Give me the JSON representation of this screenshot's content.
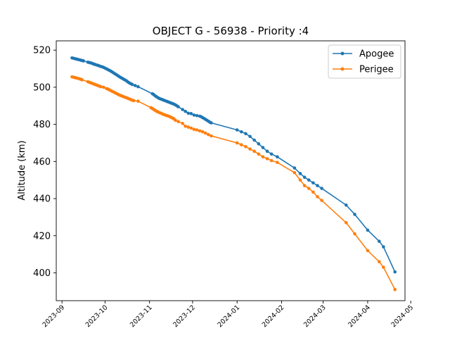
{
  "chart_data": {
    "type": "line",
    "title": "OBJECT G - 56938 - Priority :4",
    "xlabel": "",
    "ylabel": "Altitude (km)",
    "x_type": "date",
    "xlim": [
      "2023-08-28",
      "2024-04-27"
    ],
    "ylim": [
      385,
      525
    ],
    "yticks": [
      400,
      420,
      440,
      460,
      480,
      500,
      520
    ],
    "xticks": [
      "2023-09-01",
      "2023-10-01",
      "2023-11-01",
      "2023-12-01",
      "2024-01-01",
      "2024-02-01",
      "2024-03-01",
      "2024-04-01",
      "2024-05-01"
    ],
    "xtick_labels": [
      "2023-09",
      "2023-10",
      "2023-11",
      "2023-12",
      "2024-01",
      "2024-02",
      "2024-03",
      "2024-04",
      "2024-05"
    ],
    "legend": {
      "placement": "top-right"
    },
    "grid": false,
    "series": [
      {
        "name": "Apogee",
        "color": "#1f77b4",
        "marker": "circle",
        "points": [
          [
            "2023-09-08",
            515.8
          ],
          [
            "2023-09-09",
            515.6
          ],
          [
            "2023-09-10",
            515.4
          ],
          [
            "2023-09-11",
            515.2
          ],
          [
            "2023-09-12",
            515.0
          ],
          [
            "2023-09-13",
            514.8
          ],
          [
            "2023-09-14",
            514.6
          ],
          [
            "2023-09-15",
            514.4
          ],
          [
            "2023-09-16",
            514.2
          ],
          [
            "2023-09-19",
            513.5
          ],
          [
            "2023-09-20",
            513.3
          ],
          [
            "2023-09-21",
            513.1
          ],
          [
            "2023-09-22",
            512.9
          ],
          [
            "2023-09-23",
            512.5
          ],
          [
            "2023-09-24",
            512.3
          ],
          [
            "2023-09-25",
            512.0
          ],
          [
            "2023-09-26",
            511.8
          ],
          [
            "2023-09-27",
            511.5
          ],
          [
            "2023-09-28",
            511.2
          ],
          [
            "2023-09-29",
            511.0
          ],
          [
            "2023-09-30",
            510.7
          ],
          [
            "2023-10-01",
            510.3
          ],
          [
            "2023-10-02",
            509.9
          ],
          [
            "2023-10-03",
            509.5
          ],
          [
            "2023-10-04",
            509.1
          ],
          [
            "2023-10-05",
            508.7
          ],
          [
            "2023-10-06",
            508.2
          ],
          [
            "2023-10-07",
            507.7
          ],
          [
            "2023-10-08",
            507.2
          ],
          [
            "2023-10-09",
            506.7
          ],
          [
            "2023-10-10",
            506.2
          ],
          [
            "2023-10-11",
            505.7
          ],
          [
            "2023-10-12",
            505.2
          ],
          [
            "2023-10-13",
            504.8
          ],
          [
            "2023-10-14",
            504.3
          ],
          [
            "2023-10-15",
            503.9
          ],
          [
            "2023-10-16",
            503.4
          ],
          [
            "2023-10-17",
            502.8
          ],
          [
            "2023-10-18",
            502.3
          ],
          [
            "2023-10-19",
            501.9
          ],
          [
            "2023-10-20",
            501.5
          ],
          [
            "2023-10-22",
            500.9
          ],
          [
            "2023-10-24",
            500.3
          ],
          [
            "2023-11-03",
            496.5
          ],
          [
            "2023-11-04",
            496.0
          ],
          [
            "2023-11-05",
            495.3
          ],
          [
            "2023-11-06",
            494.8
          ],
          [
            "2023-11-07",
            494.3
          ],
          [
            "2023-11-08",
            493.9
          ],
          [
            "2023-11-09",
            493.6
          ],
          [
            "2023-11-10",
            493.3
          ],
          [
            "2023-11-11",
            493.0
          ],
          [
            "2023-11-12",
            492.7
          ],
          [
            "2023-11-13",
            492.4
          ],
          [
            "2023-11-14",
            492.1
          ],
          [
            "2023-11-15",
            491.8
          ],
          [
            "2023-11-16",
            491.5
          ],
          [
            "2023-11-17",
            491.2
          ],
          [
            "2023-11-18",
            490.9
          ],
          [
            "2023-11-19",
            490.5
          ],
          [
            "2023-11-20",
            490.0
          ],
          [
            "2023-11-21",
            489.5
          ],
          [
            "2023-11-24",
            488.0
          ],
          [
            "2023-11-26",
            487.0
          ],
          [
            "2023-11-28",
            486.0
          ],
          [
            "2023-11-30",
            485.8
          ],
          [
            "2023-12-02",
            485.0
          ],
          [
            "2023-12-04",
            484.7
          ],
          [
            "2023-12-06",
            484.4
          ],
          [
            "2023-12-07",
            484.1
          ],
          [
            "2023-12-08",
            483.6
          ],
          [
            "2023-12-09",
            483.2
          ],
          [
            "2023-12-10",
            482.7
          ],
          [
            "2023-12-11",
            482.2
          ],
          [
            "2023-12-12",
            481.7
          ],
          [
            "2023-12-13",
            481.2
          ],
          [
            "2023-12-14",
            480.8
          ],
          [
            "2024-01-01",
            477.0
          ],
          [
            "2024-01-04",
            476.0
          ],
          [
            "2024-01-07",
            475.0
          ],
          [
            "2024-01-10",
            473.5
          ],
          [
            "2024-01-13",
            471.5
          ],
          [
            "2024-01-16",
            469.5
          ],
          [
            "2024-01-19",
            467.5
          ],
          [
            "2024-01-22",
            465.5
          ],
          [
            "2024-01-25",
            464.0
          ],
          [
            "2024-01-29",
            462.5
          ],
          [
            "2024-02-10",
            456.5
          ],
          [
            "2024-02-14",
            453.5
          ],
          [
            "2024-02-17",
            451.5
          ],
          [
            "2024-02-20",
            450.0
          ],
          [
            "2024-02-23",
            448.5
          ],
          [
            "2024-02-26",
            447.0
          ],
          [
            "2024-02-29",
            445.5
          ],
          [
            "2024-03-17",
            436.5
          ],
          [
            "2024-03-23",
            431.5
          ],
          [
            "2024-04-01",
            423.0
          ],
          [
            "2024-04-09",
            417.0
          ],
          [
            "2024-04-12",
            414.0
          ],
          [
            "2024-04-20",
            400.5
          ]
        ]
      },
      {
        "name": "Perigee",
        "color": "#ff7f0e",
        "marker": "circle",
        "points": [
          [
            "2023-09-08",
            505.6
          ],
          [
            "2023-09-09",
            505.4
          ],
          [
            "2023-09-10",
            505.2
          ],
          [
            "2023-09-11",
            505.0
          ],
          [
            "2023-09-12",
            504.8
          ],
          [
            "2023-09-13",
            504.6
          ],
          [
            "2023-09-14",
            504.3
          ],
          [
            "2023-09-15",
            504.0
          ],
          [
            "2023-09-19",
            503.0
          ],
          [
            "2023-09-20",
            502.7
          ],
          [
            "2023-09-21",
            502.4
          ],
          [
            "2023-09-22",
            502.1
          ],
          [
            "2023-09-23",
            501.8
          ],
          [
            "2023-09-24",
            501.5
          ],
          [
            "2023-09-25",
            501.2
          ],
          [
            "2023-09-26",
            500.9
          ],
          [
            "2023-09-27",
            500.6
          ],
          [
            "2023-09-28",
            500.3
          ],
          [
            "2023-09-30",
            500.0
          ],
          [
            "2023-10-02",
            499.3
          ],
          [
            "2023-10-03",
            499.0
          ],
          [
            "2023-10-04",
            498.6
          ],
          [
            "2023-10-05",
            498.2
          ],
          [
            "2023-10-06",
            497.8
          ],
          [
            "2023-10-07",
            497.4
          ],
          [
            "2023-10-08",
            497.0
          ],
          [
            "2023-10-09",
            496.6
          ],
          [
            "2023-10-10",
            496.2
          ],
          [
            "2023-10-11",
            495.8
          ],
          [
            "2023-10-12",
            495.5
          ],
          [
            "2023-10-13",
            495.2
          ],
          [
            "2023-10-14",
            494.9
          ],
          [
            "2023-10-15",
            494.6
          ],
          [
            "2023-10-16",
            494.3
          ],
          [
            "2023-10-17",
            494.0
          ],
          [
            "2023-10-18",
            493.7
          ],
          [
            "2023-10-19",
            493.3
          ],
          [
            "2023-10-20",
            493.0
          ],
          [
            "2023-10-21",
            492.8
          ],
          [
            "2023-10-24",
            492.5
          ],
          [
            "2023-11-02",
            489.0
          ],
          [
            "2023-11-03",
            488.5
          ],
          [
            "2023-11-04",
            488.0
          ],
          [
            "2023-11-05",
            487.5
          ],
          [
            "2023-11-06",
            487.0
          ],
          [
            "2023-11-07",
            486.7
          ],
          [
            "2023-11-08",
            486.3
          ],
          [
            "2023-11-09",
            486.0
          ],
          [
            "2023-11-10",
            485.6
          ],
          [
            "2023-11-11",
            485.3
          ],
          [
            "2023-11-12",
            485.0
          ],
          [
            "2023-11-13",
            484.7
          ],
          [
            "2023-11-14",
            484.5
          ],
          [
            "2023-11-15",
            484.2
          ],
          [
            "2023-11-16",
            483.8
          ],
          [
            "2023-11-17",
            483.4
          ],
          [
            "2023-11-18",
            483.0
          ],
          [
            "2023-11-19",
            482.2
          ],
          [
            "2023-11-21",
            481.5
          ],
          [
            "2023-11-24",
            480.5
          ],
          [
            "2023-11-26",
            479.0
          ],
          [
            "2023-11-28",
            478.5
          ],
          [
            "2023-11-30",
            478.0
          ],
          [
            "2023-12-02",
            477.3
          ],
          [
            "2023-12-04",
            477.0
          ],
          [
            "2023-12-06",
            476.5
          ],
          [
            "2023-12-08",
            476.0
          ],
          [
            "2023-12-10",
            475.3
          ],
          [
            "2023-12-12",
            474.5
          ],
          [
            "2023-12-14",
            473.8
          ],
          [
            "2024-01-01",
            470.0
          ],
          [
            "2024-01-04",
            469.0
          ],
          [
            "2024-01-07",
            468.0
          ],
          [
            "2024-01-10",
            466.7
          ],
          [
            "2024-01-13",
            465.5
          ],
          [
            "2024-01-16",
            464.0
          ],
          [
            "2024-01-19",
            462.5
          ],
          [
            "2024-01-22",
            461.5
          ],
          [
            "2024-01-25",
            460.5
          ],
          [
            "2024-01-29",
            459.5
          ],
          [
            "2024-02-10",
            454.0
          ],
          [
            "2024-02-14",
            450.0
          ],
          [
            "2024-02-17",
            447.0
          ],
          [
            "2024-02-20",
            445.5
          ],
          [
            "2024-02-23",
            443.5
          ],
          [
            "2024-02-26",
            441.0
          ],
          [
            "2024-02-29",
            439.0
          ],
          [
            "2024-03-17",
            427.0
          ],
          [
            "2024-03-23",
            421.0
          ],
          [
            "2024-04-01",
            412.0
          ],
          [
            "2024-04-09",
            406.0
          ],
          [
            "2024-04-12",
            403.0
          ],
          [
            "2024-04-20",
            391.0
          ]
        ]
      }
    ]
  }
}
